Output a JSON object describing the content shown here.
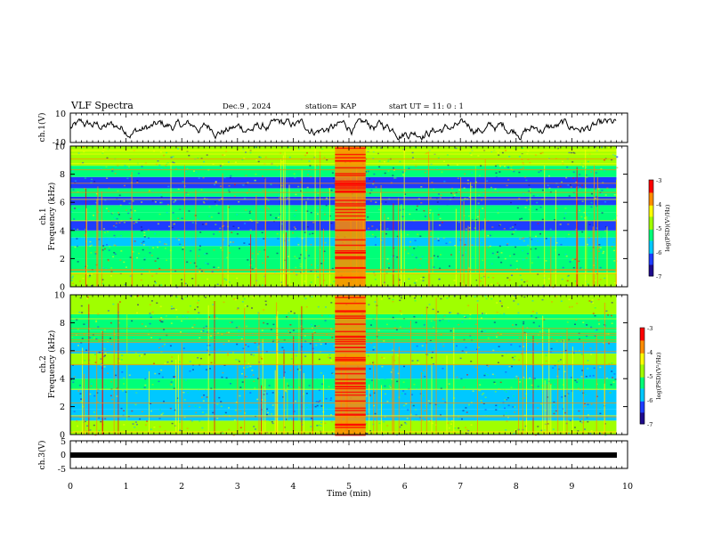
{
  "header": {
    "title": "VLF Spectra",
    "date": "Dec.9  , 2024",
    "station": "station= KAP",
    "start": "start  UT =   11: 0   : 1"
  },
  "colors": {
    "colormap": [
      "#1e0a8c",
      "#1e3cff",
      "#00c8ff",
      "#00ff78",
      "#a0ff00",
      "#ffff00",
      "#ff8c00",
      "#ff0000",
      "#ffffff"
    ]
  },
  "chart_data": [
    {
      "type": "line",
      "name": "ch1-waveform",
      "ylabel": "ch.1(V)",
      "ylim": [
        -10,
        10
      ],
      "yticks": [
        "10",
        "-10"
      ],
      "xlim": [
        0,
        10
      ],
      "note": "dense noise waveform approximately between -8 and 6 V across 0 to 9.8 min"
    },
    {
      "type": "heatmap",
      "name": "ch1-spectrogram",
      "ylabel": "ch.1\nFrequency  (kHz)",
      "xlim": [
        0,
        10
      ],
      "ylim": [
        0,
        10
      ],
      "yticks": [
        "0",
        "2",
        "4",
        "6",
        "8",
        "10"
      ],
      "data_xrange": [
        0,
        9.8
      ],
      "burst_window_min": [
        4.75,
        5.3
      ],
      "bands_khz": [
        {
          "f": [
            0,
            1.0
          ],
          "level": -4.9
        },
        {
          "f": [
            1.0,
            2.0
          ],
          "level": -5.2
        },
        {
          "f": [
            2.0,
            2.9
          ],
          "level": -5.3
        },
        {
          "f": [
            2.9,
            3.5
          ],
          "level": -5.9
        },
        {
          "f": [
            3.5,
            4.0
          ],
          "level": -5.1
        },
        {
          "f": [
            4.0,
            4.7
          ],
          "level": -6.1
        },
        {
          "f": [
            4.7,
            5.3
          ],
          "level": -5.2
        },
        {
          "f": [
            5.3,
            5.8
          ],
          "level": -5.5
        },
        {
          "f": [
            5.8,
            6.4
          ],
          "level": -6.3
        },
        {
          "f": [
            6.4,
            7.0
          ],
          "level": -5.3
        },
        {
          "f": [
            7.0,
            7.8
          ],
          "level": -6.2
        },
        {
          "f": [
            7.8,
            8.6
          ],
          "level": -5.4
        },
        {
          "f": [
            8.6,
            10.0
          ],
          "level": -5.0
        }
      ],
      "colorbar": {
        "label": "log(PSD)(V²/Hz)",
        "range": [
          -7,
          -3
        ],
        "ticks": [
          "-3",
          "-4",
          "-5",
          "-6",
          "-7"
        ]
      }
    },
    {
      "type": "heatmap",
      "name": "ch2-spectrogram",
      "ylabel": "ch.2\nFrequency  (kHz)",
      "xlim": [
        0,
        10
      ],
      "ylim": [
        0,
        10
      ],
      "yticks": [
        "0",
        "2",
        "4",
        "6",
        "8",
        "10"
      ],
      "data_xrange": [
        0,
        9.8
      ],
      "burst_window_min": [
        4.75,
        5.3
      ],
      "bands_khz": [
        {
          "f": [
            0,
            1.0
          ],
          "level": -4.9
        },
        {
          "f": [
            1.0,
            1.8
          ],
          "level": -5.6
        },
        {
          "f": [
            1.8,
            3.2
          ],
          "level": -6.0
        },
        {
          "f": [
            3.2,
            4.0
          ],
          "level": -5.3
        },
        {
          "f": [
            4.0,
            5.0
          ],
          "level": -5.8
        },
        {
          "f": [
            5.0,
            5.8
          ],
          "level": -5.0
        },
        {
          "f": [
            5.8,
            6.6
          ],
          "level": -5.7
        },
        {
          "f": [
            6.6,
            7.4
          ],
          "level": -5.1
        },
        {
          "f": [
            7.4,
            8.6
          ],
          "level": -5.5
        },
        {
          "f": [
            8.6,
            10.0
          ],
          "level": -4.8
        }
      ],
      "colorbar": {
        "label": "log(PSD)(V²/Hz)",
        "range": [
          -7,
          -3
        ],
        "ticks": [
          "-3",
          "-4",
          "-5",
          "-6",
          "-7"
        ]
      }
    },
    {
      "type": "line",
      "name": "ch3-waveform",
      "ylabel": "ch.3(V)",
      "ylim": [
        -5,
        5
      ],
      "yticks": [
        "5",
        "0",
        "-5"
      ],
      "xlim": [
        0,
        10
      ],
      "value_band_v": [
        -0.5,
        0.5
      ]
    }
  ],
  "xaxis": {
    "label": "Time  (min)",
    "ticks": [
      "0",
      "1",
      "2",
      "3",
      "4",
      "5",
      "6",
      "7",
      "8",
      "9",
      "10"
    ]
  }
}
